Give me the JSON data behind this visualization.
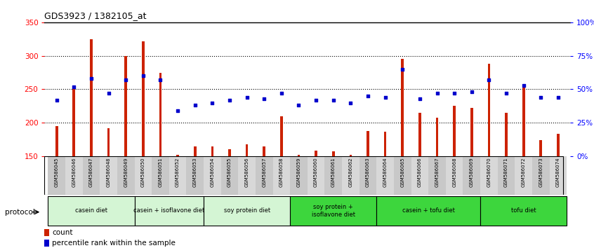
{
  "title": "GDS3923 / 1382105_at",
  "samples": [
    "GSM586045",
    "GSM586046",
    "GSM586047",
    "GSM586048",
    "GSM586049",
    "GSM586050",
    "GSM586051",
    "GSM586052",
    "GSM586053",
    "GSM586054",
    "GSM586055",
    "GSM586056",
    "GSM586057",
    "GSM586058",
    "GSM586059",
    "GSM586060",
    "GSM586061",
    "GSM586062",
    "GSM586063",
    "GSM586064",
    "GSM586065",
    "GSM586066",
    "GSM586067",
    "GSM586068",
    "GSM586069",
    "GSM586070",
    "GSM586071",
    "GSM586072",
    "GSM586073",
    "GSM586074"
  ],
  "counts": [
    195,
    250,
    325,
    192,
    300,
    322,
    275,
    152,
    165,
    165,
    160,
    168,
    165,
    210,
    152,
    158,
    157,
    152,
    188,
    187,
    295,
    215,
    208,
    225,
    222,
    288,
    215,
    253,
    174,
    183
  ],
  "percentile_ranks": [
    42,
    52,
    58,
    47,
    57,
    60,
    57,
    34,
    38,
    40,
    42,
    44,
    43,
    47,
    38,
    42,
    42,
    40,
    45,
    44,
    65,
    43,
    47,
    47,
    48,
    57,
    47,
    53,
    44,
    44
  ],
  "groups": [
    {
      "label": "casein diet",
      "start": 0,
      "end": 4
    },
    {
      "label": "casein + isoflavone diet",
      "start": 5,
      "end": 8
    },
    {
      "label": "soy protein diet",
      "start": 9,
      "end": 13
    },
    {
      "label": "soy protein +\nisoflavone diet",
      "start": 14,
      "end": 18
    },
    {
      "label": "casein + tofu diet",
      "start": 19,
      "end": 24
    },
    {
      "label": "tofu diet",
      "start": 25,
      "end": 29
    }
  ],
  "group_colors": [
    "#d4f5d4",
    "#d4f5d4",
    "#d4f5d4",
    "#3dd63d",
    "#3dd63d",
    "#3dd63d"
  ],
  "ylim_left": [
    150,
    350
  ],
  "ylim_right": [
    0,
    100
  ],
  "yticks_left": [
    150,
    200,
    250,
    300,
    350
  ],
  "yticks_right": [
    0,
    25,
    50,
    75,
    100
  ],
  "ytick_labels_right": [
    "0%",
    "25%",
    "50%",
    "75%",
    "100%"
  ],
  "bar_color": "#cc2200",
  "scatter_color": "#0000cc",
  "bar_width": 0.15,
  "bg_color": "#ffffff",
  "protocol_label": "protocol"
}
